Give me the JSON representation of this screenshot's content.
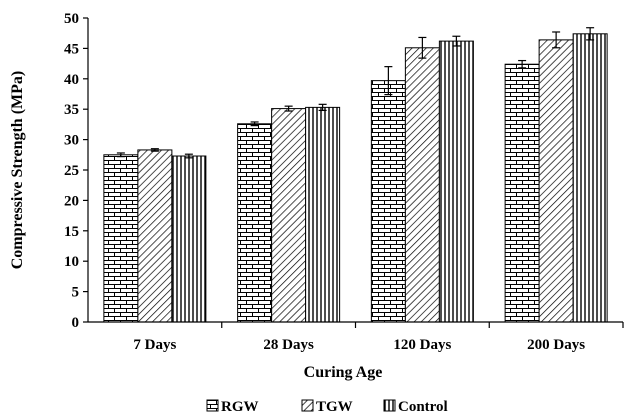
{
  "chart_data": {
    "type": "bar",
    "title": "",
    "xlabel": "Curing Age",
    "ylabel": "Compressive Strength (MPa)",
    "ylim": [
      0,
      50
    ],
    "yticks": [
      0,
      5,
      10,
      15,
      20,
      25,
      30,
      35,
      40,
      45,
      50
    ],
    "categories": [
      "7 Days",
      "28 Days",
      "120 Days",
      "200 Days"
    ],
    "series": [
      {
        "name": "RGW",
        "pattern": "bricks",
        "values": [
          27.5,
          32.6,
          39.7,
          42.4
        ],
        "errors": [
          0.3,
          0.3,
          2.3,
          0.6
        ]
      },
      {
        "name": "TGW",
        "pattern": "diagonal",
        "values": [
          28.3,
          35.1,
          45.1,
          46.4
        ],
        "errors": [
          0.2,
          0.4,
          1.7,
          1.3
        ]
      },
      {
        "name": "Control",
        "pattern": "vertical",
        "values": [
          27.3,
          35.3,
          46.2,
          47.4
        ],
        "errors": [
          0.3,
          0.5,
          0.8,
          1.0
        ]
      }
    ],
    "legend_position": "bottom",
    "grid": false
  }
}
